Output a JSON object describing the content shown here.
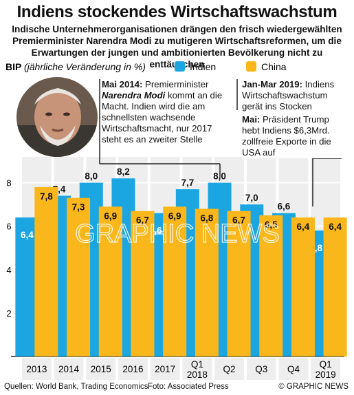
{
  "title": "Indiens stockendes Wirtschaftswachstum",
  "subtitle": "Indische Unternehmerorganisationen drängen den frisch wiedergewählten Premierminister Narendra Modi zu mutigeren Wirtschaftsreformen, um die Erwartungen der jungen und ambitionierten Bevölkerung nicht zu enttäuschen",
  "colors": {
    "india": "#1ba6e2",
    "china": "#f9b71b",
    "panel": "#eeeeee",
    "line": "#222222"
  },
  "notes": {
    "modi_head": "Mai 2014:",
    "modi_text_a": " Premierminister ",
    "modi_name": "Narendra Modi",
    "modi_text_b": " kommt an die Macht. Indien wird die am schnellsten wachsende Wirtschaftsmacht, nur 2017 steht es an zweiter Stelle",
    "janmar_head": "Jan-Mar 2019:",
    "janmar_text": " Indiens Wirtschaftswachstum gerät ins Stocken",
    "trump_head": "Mai:",
    "trump_text": " Präsident Trump hebt Indiens $6,3Mrd. zollfreie Exporte in die USA auf"
  },
  "footer": {
    "sources": "Quellen: World Bank, Trading Economics",
    "photo": "Foto: Associated Press",
    "credit": "© GRAPHIC NEWS"
  },
  "watermark": "GRAPHIC NEWS",
  "chart_data": {
    "type": "bar",
    "ylabel": "BIP (jährliche Veränderung in %)",
    "ylabel_bold": "BIP",
    "ylabel_rest": "(jährliche Veränderung in %)",
    "categories": [
      "2013",
      "2014",
      "2015",
      "2016",
      "2017",
      "Q1 2018",
      "Q2",
      "Q3",
      "Q4",
      "Q1 2019"
    ],
    "category_lines": [
      [
        "2013"
      ],
      [
        "2014"
      ],
      [
        "2015"
      ],
      [
        "2016"
      ],
      [
        "2017"
      ],
      [
        "Q1",
        "2018"
      ],
      [
        "Q2"
      ],
      [
        "Q3"
      ],
      [
        "Q4"
      ],
      [
        "Q1",
        "2019"
      ]
    ],
    "series": [
      {
        "name": "Indien",
        "values": [
          6.4,
          7.4,
          8.0,
          8.2,
          6.6,
          7.7,
          8.0,
          7.0,
          6.6,
          5.8
        ],
        "labels": [
          "6,4",
          "7,4",
          "8,0",
          "8,2",
          "6,6",
          "7,7",
          "8,0",
          "7,0",
          "6,6",
          "5,8"
        ]
      },
      {
        "name": "China",
        "values": [
          7.8,
          7.3,
          6.9,
          6.7,
          6.9,
          6.8,
          6.7,
          6.5,
          6.4,
          6.4
        ],
        "labels": [
          "7,8",
          "7,3",
          "6,9",
          "6,7",
          "6,9",
          "6,8",
          "6,7",
          "6,5",
          "6,4",
          "6,4"
        ]
      }
    ],
    "yticks": [
      2,
      4,
      6,
      8
    ],
    "ylim": [
      0,
      9
    ],
    "legend_position": "top",
    "grid": true
  }
}
